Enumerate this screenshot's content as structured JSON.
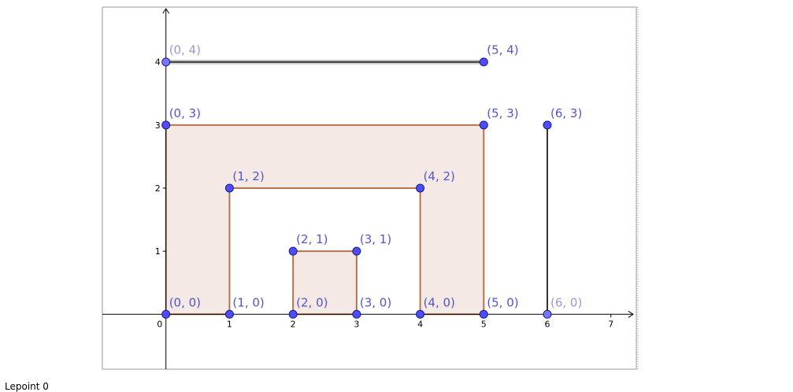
{
  "colors": {
    "background": "#ffffff",
    "frame": "#999999",
    "axis": "#000000",
    "polygon_fill": "#f5e9e6",
    "polygon_stroke": "#b8734a",
    "segment": "#333333",
    "point": "#4d4dff",
    "point_stroke": "#1a1a80",
    "label": "#5555cc",
    "label_faded": "#9a9ad8"
  },
  "chart_data": {
    "type": "scatter",
    "xlim": [
      -1,
      7.4
    ],
    "ylim": [
      -0.87,
      4.87
    ],
    "x_ticks": [
      "0",
      "1",
      "2",
      "3",
      "4",
      "5",
      "6",
      "7"
    ],
    "y_ticks": [
      "1",
      "2",
      "3",
      "4"
    ],
    "polygons": [
      {
        "name": "outer-frame",
        "vertices": [
          [
            0,
            0
          ],
          [
            1,
            0
          ],
          [
            1,
            2
          ],
          [
            4,
            2
          ],
          [
            4,
            0
          ],
          [
            5,
            0
          ],
          [
            5,
            3
          ],
          [
            0,
            3
          ]
        ]
      },
      {
        "name": "inner-square",
        "vertices": [
          [
            2,
            0
          ],
          [
            3,
            0
          ],
          [
            3,
            1
          ],
          [
            2,
            1
          ]
        ]
      }
    ],
    "segments": [
      {
        "name": "top-segment",
        "from": [
          0,
          4
        ],
        "to": [
          5,
          4
        ]
      },
      {
        "name": "right-segment",
        "from": [
          6,
          0
        ],
        "to": [
          6,
          3
        ]
      }
    ],
    "points": [
      {
        "x": 0,
        "y": 4,
        "label": "(0, 4)",
        "faded": true
      },
      {
        "x": 5,
        "y": 4,
        "label": "(5, 4)",
        "faded": false
      },
      {
        "x": 0,
        "y": 3,
        "label": "(0, 3)",
        "faded": false
      },
      {
        "x": 5,
        "y": 3,
        "label": "(5, 3)",
        "faded": false
      },
      {
        "x": 6,
        "y": 3,
        "label": "(6, 3)",
        "faded": false
      },
      {
        "x": 1,
        "y": 2,
        "label": "(1, 2)",
        "faded": false
      },
      {
        "x": 4,
        "y": 2,
        "label": "(4, 2)",
        "faded": false
      },
      {
        "x": 2,
        "y": 1,
        "label": "(2, 1)",
        "faded": false
      },
      {
        "x": 3,
        "y": 1,
        "label": "(3, 1)",
        "faded": false
      },
      {
        "x": 0,
        "y": 0,
        "label": "(0, 0)",
        "faded": false
      },
      {
        "x": 1,
        "y": 0,
        "label": "(1, 0)",
        "faded": false
      },
      {
        "x": 2,
        "y": 0,
        "label": "(2, 0)",
        "faded": false
      },
      {
        "x": 3,
        "y": 0,
        "label": "(3, 0)",
        "faded": false
      },
      {
        "x": 4,
        "y": 0,
        "label": "(4, 0)",
        "faded": false
      },
      {
        "x": 5,
        "y": 0,
        "label": "(5, 0)",
        "faded": false
      },
      {
        "x": 6,
        "y": 0,
        "label": "(6, 0)",
        "faded": true
      }
    ]
  },
  "footer": {
    "text": "Lepoint 0"
  }
}
